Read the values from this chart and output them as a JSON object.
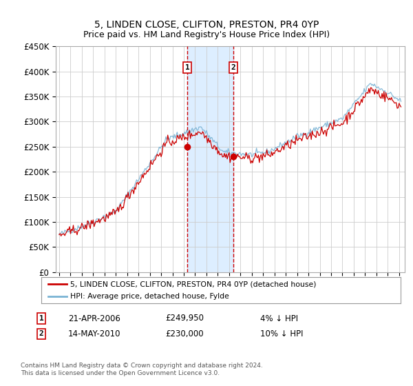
{
  "title": "5, LINDEN CLOSE, CLIFTON, PRESTON, PR4 0YP",
  "subtitle": "Price paid vs. HM Land Registry's House Price Index (HPI)",
  "ylim": [
    0,
    450000
  ],
  "yticks": [
    0,
    50000,
    100000,
    150000,
    200000,
    250000,
    300000,
    350000,
    400000,
    450000
  ],
  "ytick_labels": [
    "£0",
    "£50K",
    "£100K",
    "£150K",
    "£200K",
    "£250K",
    "£300K",
    "£350K",
    "£400K",
    "£450K"
  ],
  "xlim_start": 1994.7,
  "xlim_end": 2025.5,
  "sale1_date": 2006.3,
  "sale1_price": 249950,
  "sale2_date": 2010.37,
  "sale2_price": 230000,
  "sale1_label": "21-APR-2006",
  "sale1_amount": "£249,950",
  "sale1_hpi": "4% ↓ HPI",
  "sale2_label": "14-MAY-2010",
  "sale2_amount": "£230,000",
  "sale2_hpi": "10% ↓ HPI",
  "legend_line1": "5, LINDEN CLOSE, CLIFTON, PRESTON, PR4 0YP (detached house)",
  "legend_line2": "HPI: Average price, detached house, Fylde",
  "footer": "Contains HM Land Registry data © Crown copyright and database right 2024.\nThis data is licensed under the Open Government Licence v3.0.",
  "line_color_red": "#cc0000",
  "line_color_blue": "#7ab3d4",
  "shade_color": "#ddeeff",
  "marker_box_color": "#cc0000",
  "background_color": "#ffffff",
  "grid_color": "#cccccc"
}
